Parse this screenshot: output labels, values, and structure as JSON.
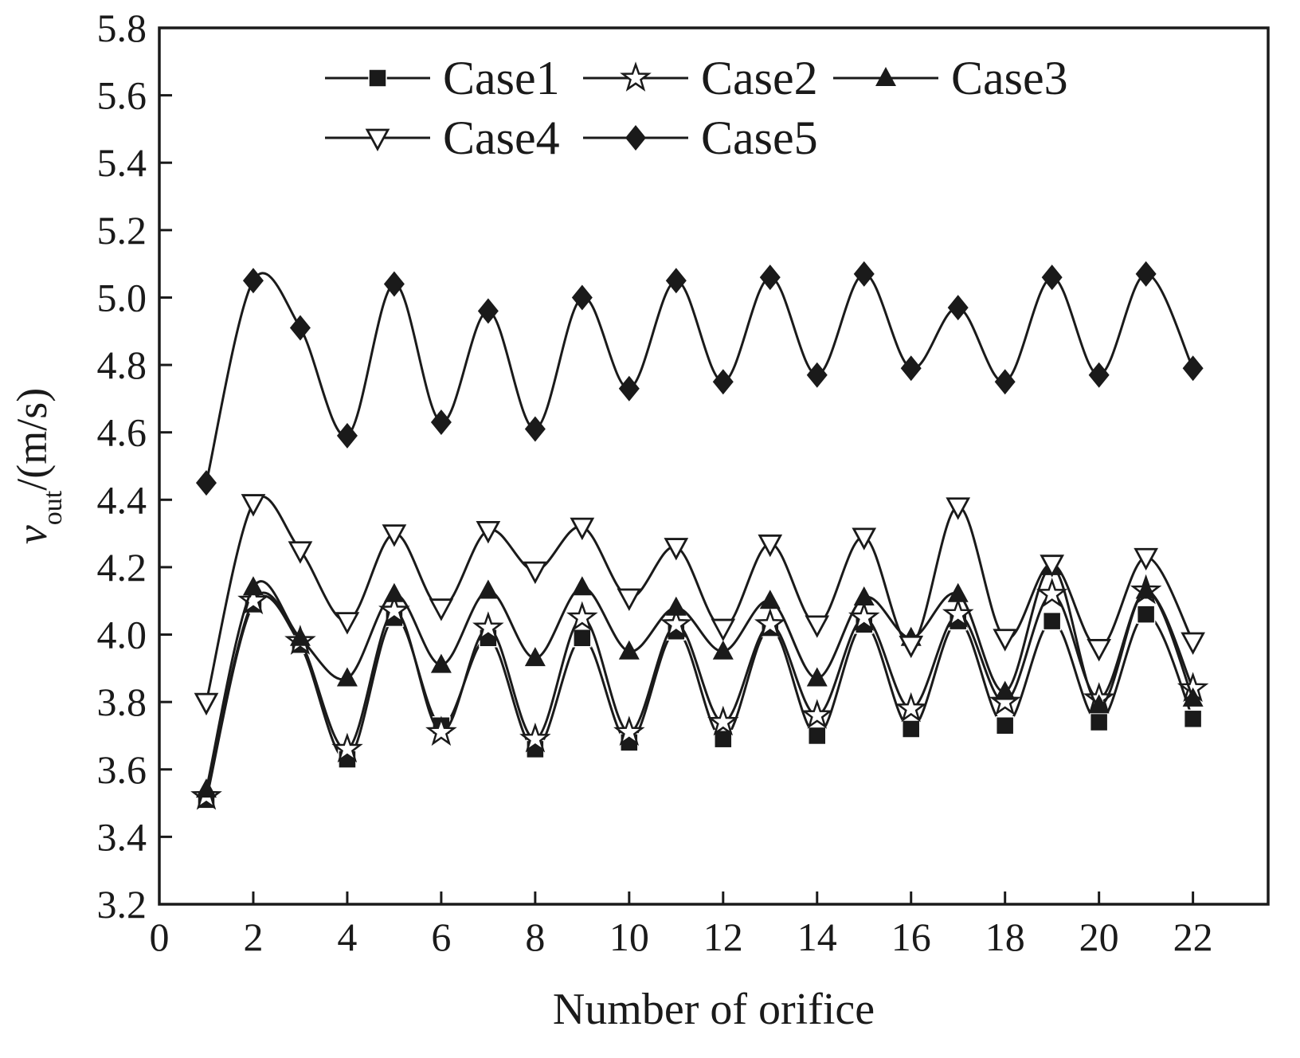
{
  "chart_data": {
    "type": "line",
    "title": "",
    "xlabel": "Number of orifice",
    "ylabel": "v_out/(m/s)",
    "ylabel_parts": [
      "v",
      "out",
      "/(m/s)"
    ],
    "xlim": [
      0,
      23.6
    ],
    "ylim": [
      3.2,
      5.8
    ],
    "x_ticks": [
      0,
      2,
      4,
      6,
      8,
      10,
      12,
      14,
      16,
      18,
      20,
      22
    ],
    "y_ticks": [
      3.2,
      3.4,
      3.6,
      3.8,
      4.0,
      4.2,
      4.4,
      4.6,
      4.8,
      5.0,
      5.2,
      5.4,
      5.6,
      5.8
    ],
    "grid": false,
    "legend_position": "top-inside",
    "line_color": "#1a1a1a",
    "x": [
      1,
      2,
      3,
      4,
      5,
      6,
      7,
      8,
      9,
      10,
      11,
      12,
      13,
      14,
      15,
      16,
      17,
      18,
      19,
      20,
      21,
      22
    ],
    "series": [
      {
        "name": "Case1",
        "marker": "filled-square",
        "values": [
          3.51,
          4.09,
          3.97,
          3.63,
          4.05,
          3.73,
          3.99,
          3.66,
          3.99,
          3.68,
          4.01,
          3.69,
          4.02,
          3.7,
          4.03,
          3.72,
          4.04,
          3.73,
          4.04,
          3.74,
          4.06,
          3.75
        ]
      },
      {
        "name": "Case2",
        "marker": "open-star",
        "values": [
          3.52,
          4.1,
          3.98,
          3.66,
          4.07,
          3.71,
          4.02,
          3.69,
          4.05,
          3.71,
          4.03,
          3.74,
          4.03,
          3.76,
          4.05,
          3.78,
          4.06,
          3.8,
          4.12,
          3.81,
          4.13,
          3.84
        ]
      },
      {
        "name": "Case3",
        "marker": "filled-triangle-up",
        "values": [
          3.54,
          4.14,
          3.99,
          3.87,
          4.12,
          3.91,
          4.13,
          3.93,
          4.14,
          3.95,
          4.08,
          3.95,
          4.1,
          3.87,
          4.11,
          3.99,
          4.12,
          3.83,
          4.2,
          3.79,
          4.13,
          3.81
        ]
      },
      {
        "name": "Case4",
        "marker": "open-triangle-down",
        "values": [
          3.8,
          4.39,
          4.25,
          4.04,
          4.3,
          4.08,
          4.31,
          4.19,
          4.32,
          4.11,
          4.26,
          4.02,
          4.27,
          4.03,
          4.29,
          3.97,
          4.38,
          3.99,
          4.21,
          3.96,
          4.23,
          3.98
        ]
      },
      {
        "name": "Case5",
        "marker": "filled-diamond",
        "values": [
          4.45,
          5.05,
          4.91,
          4.59,
          5.04,
          4.63,
          4.96,
          4.61,
          5.0,
          4.73,
          5.05,
          4.75,
          5.06,
          4.77,
          5.07,
          4.79,
          4.97,
          4.75,
          5.06,
          4.77,
          5.07,
          4.79
        ]
      }
    ],
    "legend_rows": [
      [
        "Case1",
        "Case2",
        "Case3"
      ],
      [
        "Case4",
        "Case5"
      ]
    ]
  }
}
